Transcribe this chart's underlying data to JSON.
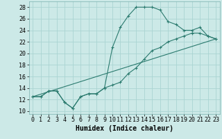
{
  "title": "",
  "xlabel": "Humidex (Indice chaleur)",
  "ylabel": "",
  "bg_color": "#cce9e7",
  "grid_color": "#aad4d2",
  "line_color": "#2a7a6e",
  "xlim": [
    -0.5,
    23.5
  ],
  "ylim": [
    9.5,
    29.0
  ],
  "xticks": [
    0,
    1,
    2,
    3,
    4,
    5,
    6,
    7,
    8,
    9,
    10,
    11,
    12,
    13,
    14,
    15,
    16,
    17,
    18,
    19,
    20,
    21,
    22,
    23
  ],
  "yticks": [
    10,
    12,
    14,
    16,
    18,
    20,
    22,
    24,
    26,
    28
  ],
  "series1_x": [
    0,
    1,
    2,
    3,
    4,
    5,
    6,
    7,
    8,
    9,
    10,
    11,
    12,
    13,
    14,
    15,
    16,
    17,
    18,
    19,
    20,
    21,
    22,
    23
  ],
  "series1_y": [
    12.5,
    12.5,
    13.5,
    13.5,
    11.5,
    10.5,
    12.5,
    13.0,
    13.0,
    14.0,
    21.0,
    24.5,
    26.5,
    28.0,
    28.0,
    28.0,
    27.5,
    25.5,
    25.0,
    24.0,
    24.0,
    24.5,
    23.0,
    22.5
  ],
  "series2_x": [
    0,
    1,
    2,
    3,
    4,
    5,
    6,
    7,
    8,
    9,
    10,
    11,
    12,
    13,
    14,
    15,
    16,
    17,
    18,
    19,
    20,
    21,
    22,
    23
  ],
  "series2_y": [
    12.5,
    12.5,
    13.5,
    13.5,
    11.5,
    10.5,
    12.5,
    13.0,
    13.0,
    14.0,
    14.5,
    15.0,
    16.5,
    17.5,
    19.0,
    20.5,
    21.0,
    22.0,
    22.5,
    23.0,
    23.5,
    23.5,
    23.0,
    22.5
  ],
  "series3_x": [
    0,
    23
  ],
  "series3_y": [
    12.5,
    22.5
  ],
  "xlabel_fontsize": 7,
  "tick_fontsize": 6
}
